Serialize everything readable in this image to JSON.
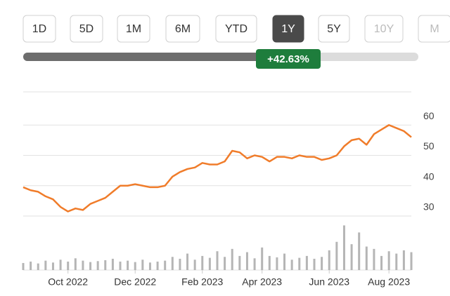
{
  "range_buttons": [
    "1D",
    "5D",
    "1M",
    "6M",
    "YTD",
    "1Y",
    "5Y",
    "10Y",
    "M"
  ],
  "active_button": 5,
  "change_badge": "+42.63%",
  "chart_data": [
    {
      "type": "line",
      "color": "#f07c2a",
      "categories": [
        null,
        null,
        null,
        null,
        null,
        null,
        "Oct 2022",
        null,
        null,
        null,
        null,
        null,
        null,
        null,
        null,
        "Dec 2022",
        null,
        null,
        null,
        null,
        null,
        null,
        null,
        null,
        "Feb 2023",
        null,
        null,
        null,
        null,
        null,
        null,
        null,
        "Apr 2023",
        null,
        null,
        null,
        null,
        null,
        null,
        null,
        null,
        "Jun 2023",
        null,
        null,
        null,
        null,
        null,
        null,
        null,
        "Aug 2023",
        null,
        null,
        null
      ],
      "values": [
        39.5,
        38.5,
        38,
        36.5,
        35.5,
        33,
        31.5,
        32.5,
        32,
        34,
        35,
        36,
        38,
        40,
        40,
        40.5,
        40,
        39.5,
        39.5,
        40,
        43,
        44.5,
        45.5,
        46,
        47.5,
        47,
        47,
        48,
        51.5,
        51,
        49,
        50,
        49.5,
        48,
        49.5,
        49.5,
        49,
        50,
        49.5,
        49.5,
        48.5,
        49,
        50,
        53,
        55,
        55.5,
        53.5,
        57,
        58.5,
        60,
        59,
        58,
        56
      ],
      "ylim": [
        30,
        70
      ],
      "yticks": [
        30,
        40,
        50,
        60
      ]
    },
    {
      "type": "bar",
      "color": "#b5b5b5",
      "values": [
        15,
        18,
        14,
        20,
        16,
        22,
        18,
        25,
        20,
        17,
        19,
        21,
        24,
        18,
        20,
        17,
        22,
        16,
        18,
        20,
        28,
        24,
        35,
        22,
        30,
        26,
        40,
        28,
        45,
        30,
        38,
        25,
        48,
        30,
        27,
        35,
        22,
        26,
        30,
        24,
        28,
        42,
        60,
        95,
        55,
        80,
        50,
        45,
        30,
        40,
        35,
        42,
        38
      ],
      "ylim": [
        0,
        100
      ]
    }
  ]
}
